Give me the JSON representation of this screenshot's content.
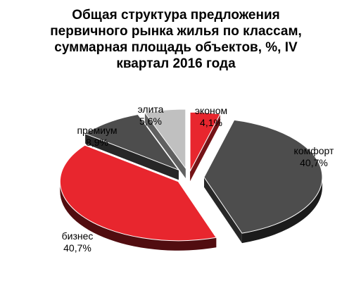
{
  "chart_data": {
    "type": "pie",
    "title": "Общая структура  предложения первичного рынка жилья по классам, суммарная площадь объектов, %, IV  квартал 2016 года",
    "slices": [
      {
        "name": "эконом",
        "value": 4.1,
        "label": "4,1%",
        "color": "#e8262e"
      },
      {
        "name": "комфорт",
        "value": 40.7,
        "label": "40,7%",
        "color": "#4d4d4d"
      },
      {
        "name": "бизнес",
        "value": 40.7,
        "label": "40,7%",
        "color": "#e8262e"
      },
      {
        "name": "премиум",
        "value": 8.9,
        "label": "8,9%",
        "color": "#4d4d4d"
      },
      {
        "name": "элита",
        "value": 5.6,
        "label": "5,6%",
        "color": "#c0c0c0"
      }
    ],
    "legend": "none",
    "exploded": true,
    "three_d": true
  }
}
